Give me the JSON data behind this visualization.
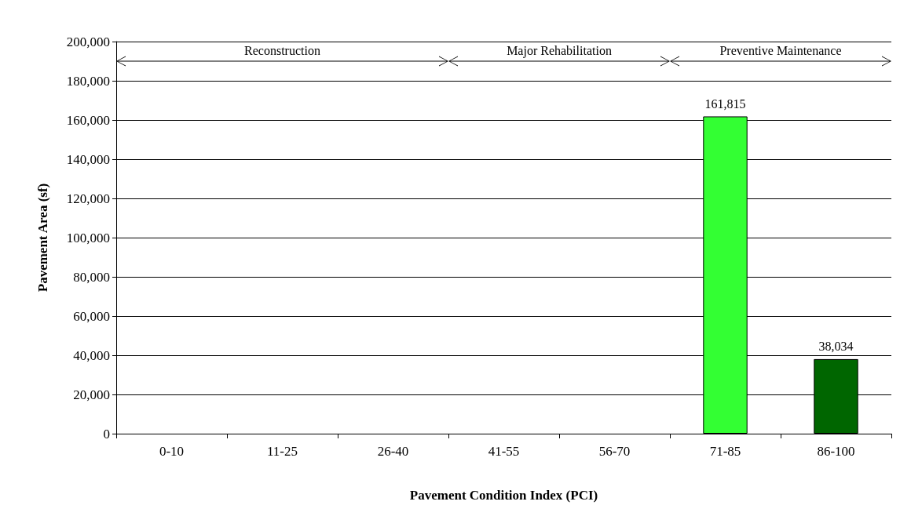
{
  "chart_data": {
    "type": "bar",
    "xlabel": "Pavement Condition Index (PCI)",
    "ylabel": "Pavement Area (sf)",
    "categories": [
      "0-10",
      "11-25",
      "26-40",
      "41-55",
      "56-70",
      "71-85",
      "86-100"
    ],
    "values": [
      0,
      0,
      0,
      0,
      0,
      161815,
      38034
    ],
    "colors": [
      "#33ff33",
      "#33ff33",
      "#33ff33",
      "#33ff33",
      "#33ff33",
      "#33ff33",
      "#006600"
    ],
    "value_labels": [
      null,
      null,
      null,
      null,
      null,
      "161,815",
      "38,034"
    ],
    "ylim": [
      0,
      200000
    ],
    "yticks": [
      0,
      {
        "value": 20000,
        "label": "20,000"
      },
      {
        "value": 40000,
        "label": "40,000"
      },
      {
        "value": 60000,
        "label": "60,000"
      },
      {
        "value": 80000,
        "label": "80,000"
      },
      {
        "value": 100000,
        "label": "100,000"
      },
      {
        "value": 120000,
        "label": "120,000"
      },
      {
        "value": 140000,
        "label": "140,000"
      },
      {
        "value": 160000,
        "label": "160,000"
      },
      {
        "value": 180000,
        "label": "180,000"
      },
      {
        "value": 200000,
        "label": "200,000"
      }
    ],
    "grid": "y",
    "annotations": [
      "Reconstruction",
      "Major Rehabilitation",
      "Preventive Maintenance"
    ]
  }
}
